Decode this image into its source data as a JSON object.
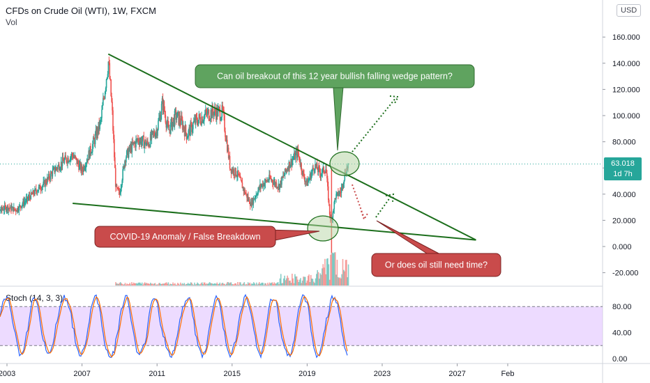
{
  "header": {
    "symbol_title": "CFDs on Crude Oil (WTI), 1W, FXCM",
    "volume_label": "Vol"
  },
  "currency_badge": "USD",
  "last_price": {
    "value": "63.018",
    "countdown": "1d 7h"
  },
  "annotations": {
    "breakout_question": "Can oil breakout of this 12 year bullish falling wedge pattern?",
    "covid_note": "COVID-19 Anomaly / False Breakdown",
    "need_time_question": "Or does oil still need time?"
  },
  "oscillator": {
    "label": "Stoch (14, 3, 3)",
    "upper_band": 80,
    "lower_band": 20,
    "tick_labels": [
      "80.00",
      "40.00",
      "0.00"
    ]
  },
  "colors": {
    "up": "#26a69a",
    "down": "#ef5350",
    "wedge_line": "#1b6e1b",
    "callout_green": "#5fa35f",
    "callout_red": "#c94b4b",
    "stoch_k": "#2962ff",
    "stoch_d": "#ff6d00",
    "stoch_band": "#e1c3ff"
  },
  "chart_data": {
    "type": "line",
    "title": "CFDs on Crude Oil (WTI), 1W, FXCM",
    "xlabel": "",
    "ylabel": "",
    "x_tick_labels": [
      "2003",
      "2007",
      "2011",
      "2015",
      "2019",
      "2023",
      "2027",
      "Feb"
    ],
    "y_tick_labels": [
      "160.000",
      "140.000",
      "120.000",
      "100.000",
      "80.000",
      "60.000",
      "40.000",
      "20.000",
      "0.000",
      "-20.000"
    ],
    "ylim": [
      -27,
      180
    ],
    "grid": false,
    "series": [
      {
        "name": "",
        "x": [
          2002.0,
          2002.5,
          2003.0,
          2003.5,
          2004.0,
          2004.5,
          2005.0,
          2005.5,
          2006.0,
          2006.5,
          2007.0,
          2007.5,
          2008.0,
          2008.4,
          2008.6,
          2008.8,
          2009.0,
          2009.3,
          2009.6,
          2010.0,
          2010.5,
          2011.0,
          2011.3,
          2011.6,
          2012.0,
          2012.3,
          2012.6,
          2013.0,
          2013.5,
          2014.0,
          2014.5,
          2014.9,
          2015.3,
          2015.6,
          2016.0,
          2016.5,
          2017.0,
          2017.5,
          2018.0,
          2018.5,
          2018.8,
          2019.0,
          2019.4,
          2019.7,
          2020.0,
          2020.2,
          2020.3,
          2020.5,
          2020.8,
          2021.0,
          2021.2
        ],
        "values": [
          20,
          27,
          30,
          28,
          35,
          42,
          48,
          58,
          65,
          70,
          58,
          75,
          95,
          142,
          105,
          45,
          40,
          68,
          75,
          82,
          78,
          90,
          110,
          88,
          100,
          95,
          85,
          95,
          100,
          103,
          102,
          60,
          55,
          44,
          32,
          46,
          52,
          46,
          62,
          72,
          54,
          48,
          62,
          56,
          60,
          25,
          20,
          38,
          42,
          55,
          63
        ]
      }
    ],
    "wedge_upper": {
      "x": [
        2008.4,
        2028.0
      ],
      "y": [
        147,
        5
      ]
    },
    "wedge_lower": {
      "x": [
        2006.5,
        2028.0
      ],
      "y": [
        33,
        5
      ]
    },
    "last_price": 63.018
  }
}
